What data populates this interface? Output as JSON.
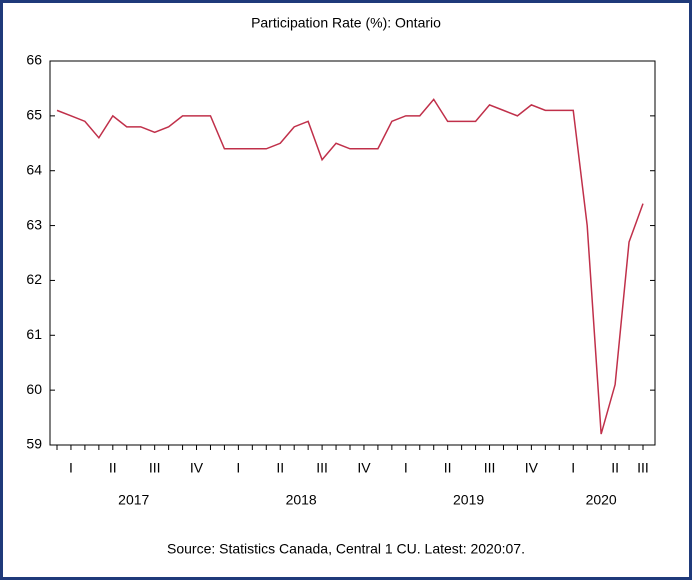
{
  "chart_data": {
    "type": "line",
    "title": "Participation Rate (%): Ontario",
    "source": "Source: Statistics Canada, Central 1 CU. Latest: 2020:07.",
    "categories": [
      null,
      "I",
      null,
      null,
      "II",
      null,
      null,
      "III",
      null,
      null,
      "IV",
      null,
      null,
      "I",
      null,
      null,
      "II",
      null,
      null,
      "III",
      null,
      null,
      "IV",
      null,
      null,
      "I",
      null,
      null,
      "II",
      null,
      null,
      "III",
      null,
      null,
      "IV",
      null,
      null,
      "I",
      null,
      null,
      "II",
      null,
      "III"
    ],
    "years": [
      "2017",
      "2018",
      "2019",
      "2020"
    ],
    "series": [
      {
        "name": "Participation Rate",
        "color": "#c0304a",
        "values": [
          65.1,
          65.0,
          64.9,
          64.6,
          65.0,
          64.8,
          64.8,
          64.7,
          64.8,
          65.0,
          65.0,
          65.0,
          64.4,
          64.4,
          64.4,
          64.4,
          64.5,
          64.8,
          64.9,
          64.2,
          64.5,
          64.4,
          64.4,
          64.4,
          64.9,
          65.0,
          65.0,
          65.3,
          64.9,
          64.9,
          64.9,
          65.2,
          65.1,
          65.0,
          65.2,
          65.1,
          65.1,
          65.1,
          63.0,
          59.2,
          60.1,
          62.7,
          63.4
        ]
      }
    ],
    "ylim": [
      59,
      66
    ],
    "yticks": [
      59,
      60,
      61,
      62,
      63,
      64,
      65,
      66
    ]
  }
}
